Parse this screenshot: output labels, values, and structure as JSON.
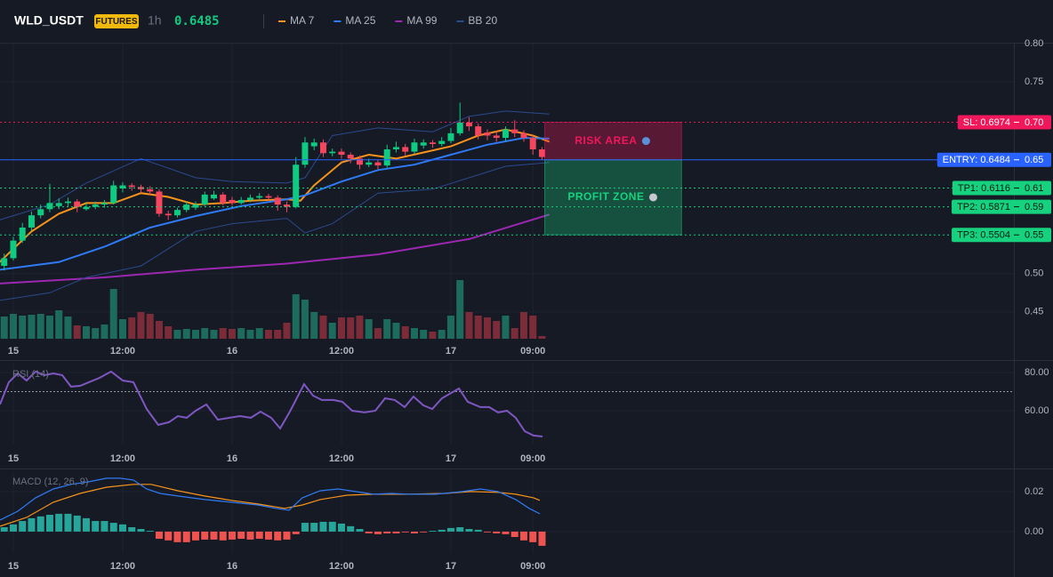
{
  "header": {
    "symbol": "WLD_USDT",
    "badge": "FUTURES",
    "interval": "1h",
    "price": "0.6485"
  },
  "chart_data": [
    {
      "type": "candlestick",
      "xlim": [
        -1.46,
        109.76
      ],
      "xticks": [
        {
          "value": 0,
          "label": "15"
        },
        {
          "value": 12,
          "label": "12:00"
        },
        {
          "value": 24,
          "label": "16"
        },
        {
          "value": 36,
          "label": "12:00"
        },
        {
          "value": 48,
          "label": "17"
        },
        {
          "value": 57,
          "label": "09:00"
        }
      ],
      "ylim": [
        0.415,
        0.8
      ],
      "yticks": [
        0.45,
        {
          "value": 0.5,
          "label": "0.50"
        },
        0.75,
        {
          "value": 0.8,
          "label": "0.80"
        }
      ],
      "up_color": "#0ecb81",
      "down_color": "#f6465d",
      "x": [
        -1,
        0,
        1,
        2,
        3,
        4,
        5,
        6,
        7,
        8,
        9,
        10,
        11,
        12,
        13,
        14,
        15,
        16,
        17,
        18,
        19,
        20,
        21,
        22,
        23,
        24,
        25,
        26,
        27,
        28,
        29,
        30,
        31,
        32,
        33,
        34,
        35,
        36,
        37,
        38,
        39,
        40,
        41,
        42,
        43,
        44,
        45,
        46,
        47,
        48,
        49,
        50,
        51,
        52,
        53,
        54,
        55,
        56,
        57,
        58
      ],
      "open": [
        0.51,
        0.52,
        0.543,
        0.56,
        0.576,
        0.584,
        0.588,
        0.592,
        0.594,
        0.584,
        0.587,
        0.59,
        0.592,
        0.611,
        0.615,
        0.613,
        0.61,
        0.607,
        0.578,
        0.576,
        0.583,
        0.586,
        0.59,
        0.598,
        0.603,
        0.596,
        0.592,
        0.596,
        0.599,
        0.601,
        0.599,
        0.59,
        0.587,
        0.642,
        0.666,
        0.671,
        0.657,
        0.659,
        0.655,
        0.65,
        0.642,
        0.645,
        0.641,
        0.662,
        0.665,
        0.659,
        0.667,
        0.671,
        0.669,
        0.673,
        0.683,
        0.697,
        0.692,
        0.684,
        0.68,
        0.677,
        0.688,
        0.683,
        0.677,
        0.662
      ],
      "high": [
        0.526,
        0.548,
        0.566,
        0.581,
        0.59,
        0.617,
        0.598,
        0.599,
        0.597,
        0.592,
        0.594,
        0.596,
        0.621,
        0.619,
        0.618,
        0.616,
        0.614,
        0.61,
        0.582,
        0.586,
        0.594,
        0.594,
        0.607,
        0.608,
        0.606,
        0.6,
        0.6,
        0.603,
        0.605,
        0.604,
        0.602,
        0.594,
        0.652,
        0.678,
        0.676,
        0.675,
        0.663,
        0.663,
        0.658,
        0.654,
        0.65,
        0.649,
        0.668,
        0.672,
        0.669,
        0.676,
        0.675,
        0.674,
        0.678,
        0.69,
        0.723,
        0.704,
        0.696,
        0.688,
        0.686,
        0.692,
        0.7,
        0.687,
        0.68,
        0.665
      ],
      "low": [
        0.504,
        0.517,
        0.54,
        0.556,
        0.572,
        0.58,
        0.584,
        0.588,
        0.58,
        0.582,
        0.584,
        0.586,
        0.59,
        0.606,
        0.608,
        0.605,
        0.602,
        0.574,
        0.57,
        0.573,
        0.58,
        0.583,
        0.588,
        0.596,
        0.589,
        0.589,
        0.59,
        0.593,
        0.595,
        0.595,
        0.582,
        0.58,
        0.585,
        0.638,
        0.661,
        0.652,
        0.653,
        0.65,
        0.644,
        0.636,
        0.639,
        0.636,
        0.638,
        0.658,
        0.654,
        0.656,
        0.663,
        0.664,
        0.666,
        0.67,
        0.68,
        0.686,
        0.675,
        0.674,
        0.672,
        0.673,
        0.678,
        0.672,
        0.655,
        0.648
      ],
      "close": [
        0.52,
        0.543,
        0.56,
        0.576,
        0.584,
        0.592,
        0.592,
        0.594,
        0.587,
        0.587,
        0.59,
        0.592,
        0.615,
        0.615,
        0.613,
        0.61,
        0.607,
        0.578,
        0.576,
        0.583,
        0.59,
        0.59,
        0.603,
        0.603,
        0.592,
        0.592,
        0.596,
        0.599,
        0.601,
        0.599,
        0.59,
        0.587,
        0.642,
        0.671,
        0.671,
        0.657,
        0.659,
        0.655,
        0.65,
        0.642,
        0.645,
        0.641,
        0.662,
        0.665,
        0.659,
        0.671,
        0.671,
        0.669,
        0.673,
        0.683,
        0.697,
        0.692,
        0.68,
        0.68,
        0.677,
        0.688,
        0.683,
        0.677,
        0.662,
        0.652
      ],
      "volume": [
        25,
        28,
        26,
        27,
        28,
        26,
        32,
        25,
        15,
        14,
        12,
        16,
        56,
        22,
        24,
        30,
        28,
        20,
        14,
        10,
        11,
        10,
        12,
        10,
        12,
        11,
        12,
        10,
        12,
        10,
        10,
        18,
        50,
        44,
        30,
        26,
        18,
        24,
        24,
        26,
        22,
        12,
        22,
        18,
        14,
        12,
        10,
        8,
        10,
        26,
        66,
        30,
        26,
        24,
        20,
        26,
        12,
        30,
        26,
        3
      ],
      "series": [
        {
          "name": "MA 7",
          "color": "#f7931a",
          "x": [
            -1.5,
            2,
            5,
            8,
            11,
            14,
            17,
            20,
            23,
            26,
            30,
            31.5,
            33,
            36,
            39,
            42,
            45,
            48,
            51,
            54,
            57,
            58.8
          ],
          "values": [
            0.515,
            0.555,
            0.578,
            0.592,
            0.592,
            0.605,
            0.6,
            0.59,
            0.592,
            0.595,
            0.597,
            0.595,
            0.615,
            0.645,
            0.655,
            0.65,
            0.658,
            0.666,
            0.68,
            0.688,
            0.68,
            0.672
          ]
        },
        {
          "name": "MA 25",
          "color": "#2f7bf5",
          "x": [
            -1.5,
            5,
            10,
            15,
            20,
            25,
            30,
            32,
            36,
            40,
            44,
            48,
            52,
            56,
            58.8
          ],
          "values": [
            0.505,
            0.515,
            0.535,
            0.56,
            0.575,
            0.588,
            0.597,
            0.602,
            0.62,
            0.635,
            0.642,
            0.655,
            0.668,
            0.677,
            0.676
          ]
        },
        {
          "name": "MA 99",
          "color": "#9c27b0",
          "x": [
            -1.5,
            10,
            20,
            30,
            40,
            50,
            58.8
          ],
          "values": [
            0.487,
            0.495,
            0.505,
            0.513,
            0.525,
            0.545,
            0.577
          ]
        },
        {
          "name": "BB 20",
          "color": "#2a4a8c",
          "x": [
            -1.5,
            4,
            8,
            14,
            20,
            24,
            30,
            32,
            35,
            40,
            46,
            50,
            54,
            58.8
          ],
          "upper": [
            0.57,
            0.59,
            0.618,
            0.65,
            0.625,
            0.62,
            0.618,
            0.625,
            0.68,
            0.69,
            0.685,
            0.705,
            0.712,
            0.708
          ],
          "lower": [
            0.465,
            0.475,
            0.495,
            0.51,
            0.555,
            0.565,
            0.572,
            0.553,
            0.565,
            0.605,
            0.61,
            0.625,
            0.64,
            0.645
          ]
        }
      ],
      "levels": [
        {
          "value": 0.6974,
          "label": "SL: 0.6974",
          "axis_label": "0.70",
          "color": "#f0185a",
          "style": "dotted"
        },
        {
          "value": 0.6484,
          "label": "ENTRY: 0.6484",
          "axis_label": "0.65",
          "color": "#2962ff",
          "style": "solid"
        },
        {
          "value": 0.6116,
          "label": "TP1: 0.6116",
          "axis_label": "0.61",
          "color": "#16d27f",
          "style": "dotted"
        },
        {
          "value": 0.5871,
          "label": "TP2: 0.5871",
          "axis_label": "0.59",
          "color": "#16d27f",
          "style": "dotted"
        },
        {
          "value": 0.5504,
          "label": "TP3: 0.5504",
          "axis_label": "0.55",
          "color": "#16d27f",
          "style": "dotted"
        }
      ],
      "zones": [
        {
          "label": "RISK AREA",
          "from": 0.6484,
          "to": 0.6974,
          "color": "#f0185a"
        },
        {
          "label": "PROFIT ZONE",
          "from": 0.5504,
          "to": 0.6484,
          "color": "#16d27f"
        }
      ]
    },
    {
      "type": "line",
      "title": "RSI (14)",
      "color": "#7e57c2",
      "level": 70,
      "xlim": [
        -1.46,
        109.76
      ],
      "xticks": [
        {
          "value": 0,
          "label": "15"
        },
        {
          "value": 12,
          "label": "12:00"
        },
        {
          "value": 24,
          "label": "16"
        },
        {
          "value": 36,
          "label": "12:00"
        },
        {
          "value": 48,
          "label": "17"
        },
        {
          "value": 57,
          "label": "09:00"
        }
      ],
      "ylim": [
        42.3,
        85.1
      ],
      "yticks": [
        {
          "value": 80,
          "label": "80.00"
        },
        {
          "value": 60,
          "label": "60.00"
        }
      ],
      "x": [
        -1.46,
        -0.49,
        0.49,
        1.46,
        2.44,
        3.41,
        4.39,
        5.37,
        6.34,
        7.32,
        8.29,
        9.46,
        10.73,
        12.0,
        13.17,
        14.63,
        15.9,
        17.07,
        18.05,
        19.02,
        20.0,
        21.17,
        22.44,
        23.71,
        24.88,
        26.05,
        27.12,
        28.29,
        29.27,
        30.34,
        31.9,
        32.88,
        33.85,
        35.12,
        36.1,
        37.17,
        38.54,
        39.71,
        40.78,
        41.85,
        42.93,
        43.9,
        44.98,
        45.95,
        47.02,
        48.88,
        49.85,
        51.22,
        52.2,
        53.17,
        54.15,
        55.12,
        56.1,
        57.07,
        58.05
      ],
      "values": [
        63.3,
        74.9,
        79.5,
        75.8,
        80.5,
        78.6,
        79.5,
        78.6,
        72.6,
        73.0,
        74.9,
        77.2,
        80.5,
        75.8,
        74.9,
        60.9,
        52.6,
        54.0,
        57.2,
        56.3,
        60.0,
        63.3,
        55.3,
        56.3,
        57.2,
        56.3,
        59.5,
        56.3,
        50.7,
        59.5,
        73.9,
        67.9,
        65.6,
        65.6,
        64.7,
        60.0,
        59.1,
        60.0,
        66.5,
        65.6,
        61.9,
        67.4,
        62.8,
        60.9,
        66.5,
        71.6,
        64.7,
        61.9,
        61.9,
        59.1,
        60.0,
        56.3,
        49.3,
        47.0,
        46.5
      ]
    },
    {
      "type": "macd",
      "title": "MACD (12, 26, 9)",
      "xlim": [
        -1.46,
        109.76
      ],
      "xticks": [
        {
          "value": 0,
          "label": "15"
        },
        {
          "value": 12,
          "label": "12:00"
        },
        {
          "value": 24,
          "label": "16"
        },
        {
          "value": 36,
          "label": "12:00"
        },
        {
          "value": 48,
          "label": "17"
        },
        {
          "value": 57,
          "label": "09:00"
        }
      ],
      "ylim": [
        -0.0107,
        0.0302
      ],
      "yticks": [
        0.02,
        {
          "value": 0,
          "label": "0.00"
        }
      ],
      "up_color": "#26a69a",
      "down_color": "#ef5350",
      "x": [
        -1,
        0,
        1,
        2,
        3,
        4,
        5,
        6,
        7,
        8,
        9,
        10,
        11,
        12,
        13,
        14,
        15,
        16,
        17,
        18,
        19,
        20,
        21,
        22,
        23,
        24,
        25,
        26,
        27,
        28,
        29,
        30,
        31,
        32,
        33,
        34,
        35,
        36,
        37,
        38,
        39,
        40,
        41,
        42,
        43,
        44,
        45,
        46,
        47,
        48,
        49,
        50,
        51,
        52,
        53,
        54,
        55,
        56,
        57,
        58
      ],
      "histogram": [
        0.0022,
        0.0036,
        0.0053,
        0.0067,
        0.0076,
        0.0084,
        0.0089,
        0.0089,
        0.008,
        0.0067,
        0.0053,
        0.0053,
        0.0044,
        0.0036,
        0.0022,
        0.0013,
        0.0004,
        -0.0036,
        -0.0044,
        -0.0053,
        -0.0053,
        -0.0044,
        -0.004,
        -0.004,
        -0.0044,
        -0.004,
        -0.0036,
        -0.004,
        -0.0036,
        -0.004,
        -0.0044,
        -0.004,
        -0.0013,
        0.0044,
        0.0044,
        0.0049,
        0.0049,
        0.004,
        0.0027,
        0.0013,
        -0.0009,
        -0.0013,
        -0.0009,
        -0.0009,
        -0.0004,
        -0.0009,
        -0.0004,
        0.0004,
        0.0009,
        0.0018,
        0.0022,
        0.0013,
        0.0009,
        -0.0004,
        -0.0009,
        -0.0013,
        -0.0027,
        -0.0044,
        -0.0053,
        -0.0071
      ],
      "macd": {
        "color": "#2f7bf5",
        "x": [
          -1.46,
          0.49,
          2.44,
          4.39,
          6.34,
          8.29,
          10.24,
          11.71,
          13.17,
          14.63,
          16.1,
          18.05,
          20.98,
          23.9,
          26.83,
          28.78,
          30.24,
          31.71,
          33.66,
          35.61,
          37.56,
          39.51,
          41.46,
          43.41,
          46.34,
          49.27,
          51.22,
          53.17,
          55.12,
          56.59,
          57.76
        ],
        "values": [
          0.0058,
          0.0102,
          0.0169,
          0.0213,
          0.0236,
          0.0249,
          0.0267,
          0.0267,
          0.0258,
          0.0213,
          0.0191,
          0.0178,
          0.016,
          0.0147,
          0.0133,
          0.0116,
          0.0107,
          0.0169,
          0.0204,
          0.0213,
          0.02,
          0.0187,
          0.0191,
          0.0187,
          0.0187,
          0.02,
          0.0213,
          0.02,
          0.016,
          0.0116,
          0.0089
        ]
      },
      "signal": {
        "color": "#f7931a",
        "x": [
          -1.46,
          1.46,
          4.39,
          7.32,
          10.24,
          13.17,
          15.12,
          18.05,
          20.98,
          23.9,
          26.83,
          29.76,
          31.71,
          33.66,
          36.59,
          39.51,
          43.41,
          47.32,
          50.24,
          53.17,
          55.12,
          57.07,
          57.76
        ],
        "values": [
          0.0027,
          0.0071,
          0.0147,
          0.0191,
          0.0222,
          0.0236,
          0.0236,
          0.0204,
          0.0178,
          0.0156,
          0.0138,
          0.0116,
          0.0133,
          0.016,
          0.0182,
          0.0187,
          0.0187,
          0.0191,
          0.02,
          0.0196,
          0.0187,
          0.0169,
          0.0156
        ]
      }
    }
  ]
}
